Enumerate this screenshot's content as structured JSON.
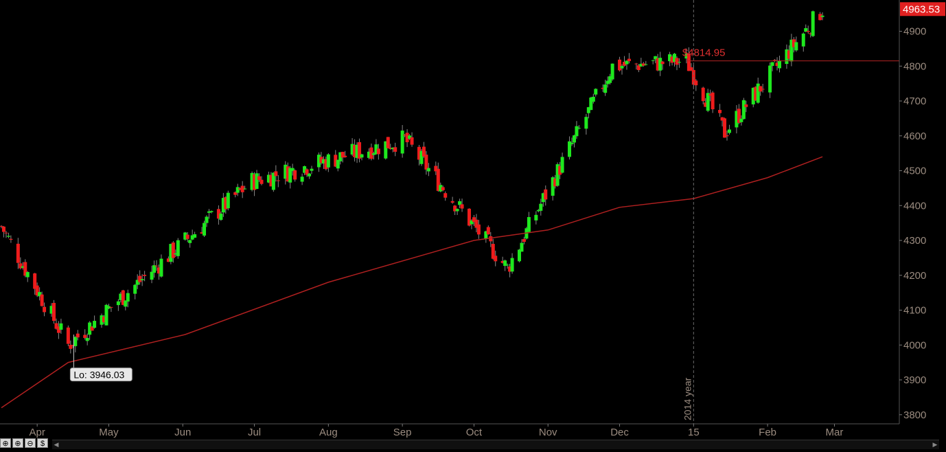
{
  "colors": {
    "background": "#000000",
    "up_candle": "#1ee81e",
    "down_candle": "#ee1c1c",
    "wick": "#888888",
    "moving_average": "#b02020",
    "axis_text": "#9b8c80",
    "last_price_badge": "#e02020",
    "reference_line": "#b42424",
    "vertical_marker": "#6a6a6a"
  },
  "chart_data": {
    "type": "candlestick",
    "title": "",
    "ylim": [
      3780,
      5000
    ],
    "y_ticks": [
      "3800",
      "3900",
      "4000",
      "4100",
      "4200",
      "4300",
      "4400",
      "4500",
      "4600",
      "4700",
      "4800",
      "4900"
    ],
    "x_ticks": [
      {
        "label": "Apr",
        "date": "2014-04-01"
      },
      {
        "label": "May",
        "date": "2014-05-01"
      },
      {
        "label": "Jun",
        "date": "2014-06-01"
      },
      {
        "label": "Jul",
        "date": "2014-07-01"
      },
      {
        "label": "Aug",
        "date": "2014-08-01"
      },
      {
        "label": "Sep",
        "date": "2014-09-01"
      },
      {
        "label": "Oct",
        "date": "2014-10-01"
      },
      {
        "label": "Nov",
        "date": "2014-11-01"
      },
      {
        "label": "Dec",
        "date": "2014-12-01"
      },
      {
        "label": "15",
        "date": "2015-01-01"
      },
      {
        "label": "Feb",
        "date": "2015-02-01"
      },
      {
        "label": "Mar",
        "date": "2015-03-01"
      }
    ],
    "last_price": {
      "label": "4963.53",
      "value": 4963.53
    },
    "reference_level": {
      "label": "$4814.95",
      "value": 4814.95
    },
    "low_annotation": {
      "label": "Lo: 3946.03",
      "value": 3946.03
    },
    "year_marker": {
      "label": "2014 year",
      "date": "2015-01-01"
    },
    "key_closes": [
      {
        "date": "2014-03-17",
        "close": 4340
      },
      {
        "date": "2014-04-14",
        "close": 4000
      },
      {
        "date": "2014-06-30",
        "close": 4470
      },
      {
        "date": "2014-09-02",
        "close": 4590
      },
      {
        "date": "2014-10-15",
        "close": 4220
      },
      {
        "date": "2014-11-28",
        "close": 4800
      },
      {
        "date": "2014-12-29",
        "close": 4815
      },
      {
        "date": "2015-01-14",
        "close": 4610
      },
      {
        "date": "2015-02-24",
        "close": 4963.53
      }
    ],
    "moving_average": [
      {
        "date": "2014-03-17",
        "value": 3820
      },
      {
        "date": "2014-04-14",
        "value": 3950
      },
      {
        "date": "2014-06-02",
        "value": 4030
      },
      {
        "date": "2014-08-01",
        "value": 4180
      },
      {
        "date": "2014-10-01",
        "value": 4300
      },
      {
        "date": "2014-11-01",
        "value": 4330
      },
      {
        "date": "2014-12-01",
        "value": 4395
      },
      {
        "date": "2015-01-01",
        "value": 4420
      },
      {
        "date": "2015-02-01",
        "value": 4480
      },
      {
        "date": "2015-02-24",
        "value": 4540
      }
    ]
  },
  "toolbar": {
    "buttons": [
      {
        "icon": "zoom-in-icon",
        "glyph": "⊕"
      },
      {
        "icon": "zoom-reset-icon",
        "glyph": "⊕"
      },
      {
        "icon": "zoom-out-icon",
        "glyph": "⊖"
      },
      {
        "icon": "dollar-icon",
        "glyph": "$"
      }
    ]
  }
}
